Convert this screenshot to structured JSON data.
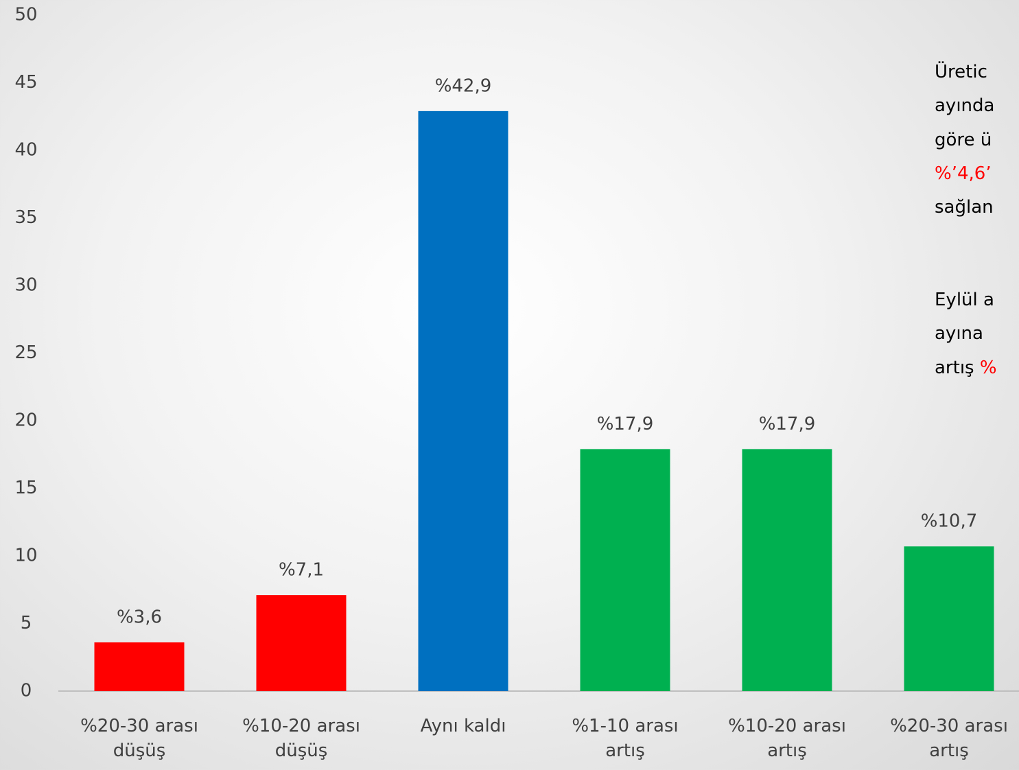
{
  "chart_data": {
    "type": "bar",
    "categories": [
      "%20-30 arası düşüş",
      "%10-20 arası düşüş",
      "Aynı kaldı",
      "%1-10 arası artış",
      "%10-20 arası artış",
      "%20-30 arası artış"
    ],
    "values": [
      3.6,
      7.1,
      42.9,
      17.9,
      17.9,
      10.7
    ],
    "value_labels": [
      "%3,6",
      "%7,1",
      "%42,9",
      "%17,9",
      "%17,9",
      "%10,7"
    ],
    "colors": [
      "#ff0000",
      "#ff0000",
      "#0070c0",
      "#00b050",
      "#00b050",
      "#00b050"
    ],
    "ylim": [
      0,
      50
    ],
    "yticks": [
      0,
      5,
      10,
      15,
      20,
      25,
      30,
      35,
      40,
      45,
      50
    ],
    "grid": false,
    "annotation": [
      [
        {
          "text": "Üretic",
          "color": "#000000"
        }
      ],
      [
        {
          "text": "ayında",
          "color": "#000000"
        }
      ],
      [
        {
          "text": "göre ü",
          "color": "#000000"
        }
      ],
      [
        {
          "text": "%’4,6’",
          "color": "#ff0000"
        }
      ],
      [
        {
          "text": "sağlan",
          "color": "#000000"
        }
      ],
      [
        {
          "text": "Eylül a",
          "color": "#000000"
        }
      ],
      [
        {
          "text": "ayına",
          "color": "#000000"
        }
      ],
      [
        {
          "text": "artış ",
          "color": "#000000"
        },
        {
          "text": "%",
          "color": "#ff0000"
        }
      ]
    ]
  }
}
